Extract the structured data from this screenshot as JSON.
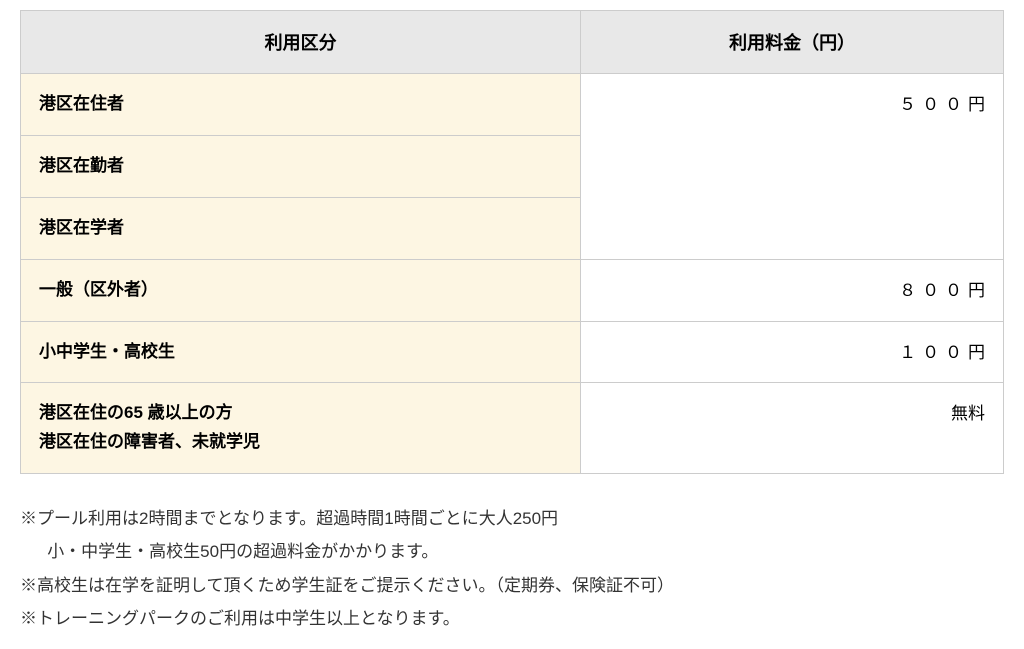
{
  "table": {
    "headers": {
      "category": "利用区分",
      "fee": "利用料金（円）"
    },
    "rows": {
      "resident": "港区在住者",
      "worker": "港区在勤者",
      "student": "港区在学者",
      "resident_fee_num": "５００",
      "resident_fee_unit": "円",
      "general": "一般（区外者）",
      "general_fee_num": "８００",
      "general_fee_unit": "円",
      "school": "小中学生・高校生",
      "school_fee_num": "１００",
      "school_fee_unit": "円",
      "senior_line1": "港区在住の65 歳以上の方",
      "senior_line2": "港区在住の障害者、未就学児",
      "senior_fee": "無料"
    }
  },
  "notes": {
    "line1": "※プール利用は2時間までとなります。超過時間1時間ごとに大人250円",
    "line2": "小・中学生・高校生50円の超過料金がかかります。",
    "line3": "※高校生は在学を証明して頂くため学生証をご提示ください。（定期券、保険証不可）",
    "line4": "※トレーニングパークのご利用は中学生以上となります。"
  },
  "styling": {
    "header_bg": "#e8e8e8",
    "category_bg": "#fdf6e3",
    "fee_bg": "#ffffff",
    "border_color": "#cccccc",
    "text_color": "#333333",
    "header_fontsize": 18,
    "cell_fontsize": 17,
    "notes_fontsize": 17,
    "col_category_width_pct": 57,
    "col_fee_width_pct": 43
  }
}
